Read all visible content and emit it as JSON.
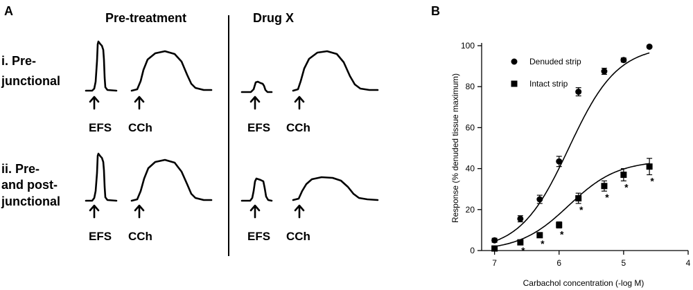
{
  "panel_a": {
    "label": "A",
    "col_pre": "Pre-treatment",
    "col_drug": "Drug X",
    "row1": [
      "i. Pre-",
      "junctional"
    ],
    "row2": [
      "ii. Pre-",
      "and post-",
      "junctional"
    ],
    "efs": "EFS",
    "cch": "CCh"
  },
  "panel_b": {
    "label": "B"
  },
  "chart_data": {
    "type": "scatter",
    "xlabel": "Carbachol concentration (-log M)",
    "ylabel": "Response (% denuded tissue maximum)",
    "xlim": [
      7.2,
      4
    ],
    "ylim": [
      0,
      100
    ],
    "x_reversed": true,
    "xticks": [
      7,
      6,
      5,
      4
    ],
    "yticks": [
      0,
      20,
      40,
      60,
      80,
      100
    ],
    "legend_position": "top-left",
    "series": [
      {
        "name": "Denuded strip",
        "marker": "circle",
        "x": [
          7,
          6.6,
          6.3,
          6,
          5.7,
          5.3,
          5,
          4.6
        ],
        "y": [
          5,
          15.5,
          25,
          43.5,
          77.5,
          87.5,
          93,
          99.5
        ],
        "err": [
          1,
          1.5,
          2,
          2.5,
          2,
          1.5,
          1,
          0.5
        ],
        "fit": {
          "bottom": 0,
          "top": 100,
          "logec50": 5.85,
          "hill": 1.15
        }
      },
      {
        "name": "Intact strip",
        "marker": "square",
        "x": [
          7,
          6.6,
          6.3,
          6,
          5.7,
          5.3,
          5,
          4.6
        ],
        "y": [
          1,
          4,
          7.5,
          12.5,
          25.5,
          31.5,
          37,
          41
        ],
        "err": [
          0.5,
          1,
          1,
          1.5,
          2.5,
          2.5,
          3,
          4
        ],
        "significant": [
          false,
          true,
          true,
          true,
          true,
          true,
          true,
          true
        ],
        "fit": {
          "bottom": 0,
          "top": 44,
          "logec50": 5.85,
          "hill": 1.15
        }
      }
    ],
    "significance_mark": "*"
  }
}
